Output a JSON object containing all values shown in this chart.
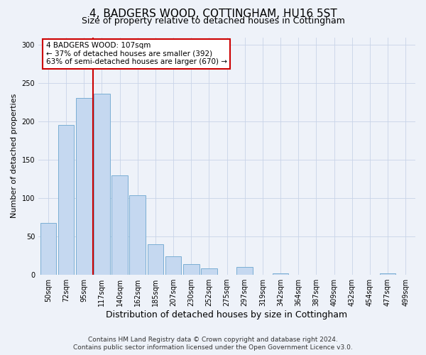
{
  "title": "4, BADGERS WOOD, COTTINGHAM, HU16 5ST",
  "subtitle": "Size of property relative to detached houses in Cottingham",
  "xlabel": "Distribution of detached houses by size in Cottingham",
  "ylabel": "Number of detached properties",
  "bar_labels": [
    "50sqm",
    "72sqm",
    "95sqm",
    "117sqm",
    "140sqm",
    "162sqm",
    "185sqm",
    "207sqm",
    "230sqm",
    "252sqm",
    "275sqm",
    "297sqm",
    "319sqm",
    "342sqm",
    "364sqm",
    "387sqm",
    "409sqm",
    "432sqm",
    "454sqm",
    "477sqm",
    "499sqm"
  ],
  "bar_values": [
    68,
    196,
    231,
    236,
    130,
    104,
    40,
    24,
    14,
    8,
    0,
    10,
    0,
    2,
    0,
    0,
    0,
    0,
    0,
    2,
    0
  ],
  "bar_color": "#c5d8f0",
  "bar_edge_color": "#7baed4",
  "ylim": [
    0,
    310
  ],
  "yticks": [
    0,
    50,
    100,
    150,
    200,
    250,
    300
  ],
  "vline_color": "#cc0000",
  "annotation_title": "4 BADGERS WOOD: 107sqm",
  "annotation_line1": "← 37% of detached houses are smaller (392)",
  "annotation_line2": "63% of semi-detached houses are larger (670) →",
  "annotation_box_color": "#ffffff",
  "annotation_box_edge": "#cc0000",
  "footer1": "Contains HM Land Registry data © Crown copyright and database right 2024.",
  "footer2": "Contains public sector information licensed under the Open Government Licence v3.0.",
  "bg_color": "#eef2f9",
  "grid_color": "#c8d4e8",
  "title_fontsize": 11,
  "subtitle_fontsize": 9,
  "xlabel_fontsize": 9,
  "ylabel_fontsize": 8,
  "tick_fontsize": 7,
  "footer_fontsize": 6.5
}
